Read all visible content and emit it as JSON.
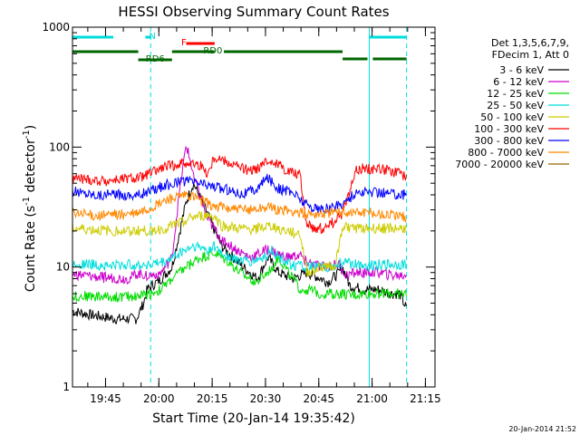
{
  "chart_data": {
    "type": "line",
    "title": "HESSI Observing Summary Count Rates",
    "xlabel": "Start Time (20-Jan-14 19:35:42)",
    "ylabel_main": "Count Rate (s",
    "ylabel_sup1": "-1",
    "ylabel_mid": " detector",
    "ylabel_sup2": "-1",
    "ylabel_end": ")",
    "footer": "20-Jan-2014 21:52",
    "y_scale": "log",
    "ylim": [
      1,
      1000
    ],
    "y_ticks": [
      1,
      10,
      100,
      1000
    ],
    "y_tick_labels": [
      "1",
      "10",
      "100",
      "1000"
    ],
    "xlim_minutes": [
      0,
      102
    ],
    "x_ticks_minutes": [
      9.3,
      24.3,
      39.3,
      54.3,
      69.3,
      84.3,
      99.3
    ],
    "x_tick_labels": [
      "19:45",
      "20:00",
      "20:15",
      "20:30",
      "20:45",
      "21:00",
      "21:15"
    ],
    "legend": {
      "header1": "Det 1,3,5,6,7,9,",
      "header2": "FDecim 1, Att 0",
      "placement": "top-right outside"
    },
    "series": [
      {
        "name": "3 - 6 keV",
        "color": "#000000",
        "x": [
          0,
          5,
          12,
          18,
          20,
          21,
          25,
          28,
          32,
          34,
          38,
          40,
          42,
          44,
          48,
          50,
          52,
          55,
          58,
          62,
          64,
          66,
          70,
          72,
          75,
          76,
          78,
          82,
          86,
          90,
          92,
          94
        ],
        "y": [
          4.3,
          4.0,
          3.7,
          3.7,
          5,
          6.5,
          8,
          10,
          35,
          50,
          28,
          20,
          15,
          13,
          10,
          9,
          8,
          12,
          9,
          8,
          8.5,
          9,
          8,
          7.5,
          9,
          10,
          7,
          6.5,
          6.5,
          6,
          6,
          4.5
        ]
      },
      {
        "name": "6 - 12 keV",
        "color": "#cc00cc",
        "x": [
          0,
          8,
          16,
          18,
          22,
          25,
          28,
          30,
          32,
          34,
          38,
          42,
          46,
          50,
          55,
          60,
          64,
          66,
          70,
          75,
          77,
          80,
          86,
          90,
          94
        ],
        "y": [
          8.7,
          8.2,
          8.0,
          8.8,
          8.5,
          9,
          12,
          40,
          105,
          60,
          25,
          17,
          14,
          12,
          14,
          12,
          12.5,
          11,
          10,
          10.5,
          8.5,
          9,
          9,
          8.5,
          8.5
        ]
      },
      {
        "name": "12 - 25 keV",
        "color": "#00dd00",
        "x": [
          0,
          5,
          12,
          18,
          22,
          25,
          28,
          32,
          36,
          40,
          44,
          48,
          52,
          55,
          58,
          62,
          64,
          66,
          70,
          74,
          76,
          78,
          82,
          86,
          90,
          94
        ],
        "y": [
          5.7,
          5.7,
          5.6,
          5.7,
          6,
          6.5,
          8,
          10,
          12,
          13,
          11,
          8.5,
          7.5,
          9,
          12,
          8,
          6.5,
          6.5,
          6,
          6,
          6,
          5.8,
          6,
          6,
          6,
          6
        ]
      },
      {
        "name": "25 - 50 keV",
        "color": "#00dddd",
        "x": [
          0,
          10,
          18,
          22,
          26,
          30,
          34,
          38,
          40,
          42,
          46,
          50,
          54,
          56,
          58,
          62,
          66,
          70,
          74,
          76,
          80,
          86,
          90,
          94
        ],
        "y": [
          10.8,
          10.2,
          10.5,
          10.5,
          11,
          13,
          15,
          14,
          15,
          13,
          11.5,
          11,
          12,
          14,
          12,
          10.5,
          10,
          10,
          10,
          11,
          10.5,
          10.5,
          10.5,
          10.5
        ]
      },
      {
        "name": "50 - 100 keV",
        "color": "#cccc00",
        "x": [
          0,
          10,
          18,
          22,
          26,
          30,
          34,
          38,
          40,
          42,
          46,
          50,
          54,
          56,
          60,
          64,
          66,
          68,
          70,
          74,
          76,
          80,
          86,
          90,
          94
        ],
        "y": [
          21,
          20,
          20,
          20,
          21,
          23,
          26,
          27,
          26,
          22,
          21,
          20.5,
          21.5,
          22,
          20,
          19,
          9,
          9.5,
          10,
          10.5,
          22,
          21,
          21,
          21,
          21
        ]
      },
      {
        "name": "100 - 300 keV",
        "color": "#ff0000",
        "x": [
          0,
          8,
          18,
          22,
          26,
          32,
          36,
          38,
          40,
          46,
          50,
          54,
          56,
          60,
          64,
          66,
          70,
          74,
          76,
          80,
          86,
          90,
          94
        ],
        "y": [
          55,
          52,
          55,
          60,
          68,
          75,
          70,
          60,
          83,
          70,
          62,
          72,
          78,
          65,
          59,
          22,
          21,
          24,
          28,
          66,
          66,
          63,
          57
        ]
      },
      {
        "name": "300 - 800 keV",
        "color": "#0000ff",
        "x": [
          0,
          8,
          18,
          22,
          26,
          32,
          36,
          40,
          44,
          48,
          52,
          55,
          58,
          62,
          66,
          70,
          74,
          76,
          80,
          86,
          90,
          94
        ],
        "y": [
          43,
          40,
          40,
          43,
          48,
          52,
          50,
          47,
          44,
          41,
          45,
          56,
          45,
          42,
          33,
          30,
          32,
          34,
          42,
          42,
          41,
          40
        ]
      },
      {
        "name": "800 - 7000 keV",
        "color": "#ff8800",
        "x": [
          0,
          8,
          18,
          22,
          26,
          32,
          36,
          40,
          44,
          48,
          52,
          55,
          58,
          62,
          66,
          70,
          74,
          76,
          80,
          86,
          90,
          94
        ],
        "y": [
          28,
          27,
          28,
          31,
          36,
          40,
          36,
          32,
          31,
          30,
          31,
          32,
          30,
          29,
          28,
          28,
          28.5,
          29,
          29,
          28,
          27,
          26
        ]
      },
      {
        "name": "7000 - 20000 keV",
        "color": "#996600",
        "x": [],
        "y": []
      }
    ],
    "flags": [
      {
        "label": "N",
        "color": "#00dddd",
        "x_start": 0,
        "x_end": 22,
        "y": 800
      },
      {
        "label": "N",
        "color": "#00dddd",
        "x_start": 83.5,
        "x_end": 94,
        "y": 800
      },
      {
        "label": "F",
        "color": "#ff0000",
        "x_start": 32,
        "x_end": 40,
        "y": 680
      },
      {
        "label": "RD0",
        "color": "#006600",
        "x_start": 0,
        "x_end": 83,
        "y": 580
      },
      {
        "label": "RD6",
        "color": "#006600",
        "x_start": 0,
        "x_end": 83,
        "y": 580
      }
    ],
    "vertical_markers": {
      "solid": [
        0,
        83.5
      ],
      "dashed": [
        22,
        94
      ]
    }
  }
}
